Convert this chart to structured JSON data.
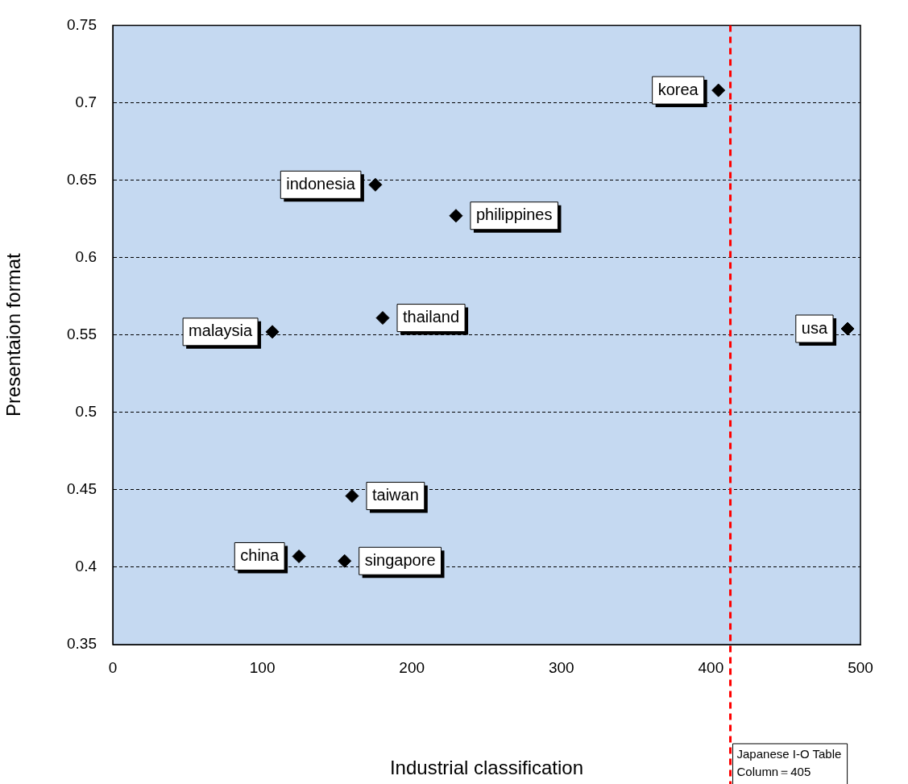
{
  "chart_data": {
    "type": "scatter",
    "xlabel": "Industrial classification",
    "ylabel": "Presentaion format",
    "x": [
      405,
      175.6,
      229.5,
      180.5,
      106.7,
      491.4,
      160,
      124.5,
      155
    ],
    "values": [
      0.708,
      0.647,
      0.627,
      0.561,
      0.552,
      0.554,
      0.446,
      0.407,
      0.404
    ],
    "color": "#000000",
    "marker": "diamond",
    "xlim": [
      0,
      500
    ],
    "ylim": [
      0.35,
      0.75
    ],
    "xticks": [
      0,
      100,
      200,
      300,
      400,
      500
    ],
    "yticks": [
      0.35,
      0.4,
      0.45,
      0.5,
      0.55,
      0.6,
      0.65,
      0.7,
      0.75
    ],
    "grid": "y",
    "ref_lines": [
      {
        "axis": "x",
        "value": 413,
        "label": "Japanese I-O Table\nColumn＝405",
        "color": "#ff0000",
        "line_style": "dashed"
      }
    ],
    "annotations": [
      {
        "text": "korea",
        "x": 405,
        "y": 0.708
      },
      {
        "text": "indonesia",
        "x": 175.6,
        "y": 0.647
      },
      {
        "text": "philippines",
        "x": 229.5,
        "y": 0.627
      },
      {
        "text": "thailand",
        "x": 180.5,
        "y": 0.561
      },
      {
        "text": "malaysia",
        "x": 106.7,
        "y": 0.552
      },
      {
        "text": "usa",
        "x": 491.4,
        "y": 0.554
      },
      {
        "text": "taiwan",
        "x": 160,
        "y": 0.446
      },
      {
        "text": "china",
        "x": 124.5,
        "y": 0.407
      },
      {
        "text": "singapore",
        "x": 155,
        "y": 0.404
      }
    ]
  }
}
